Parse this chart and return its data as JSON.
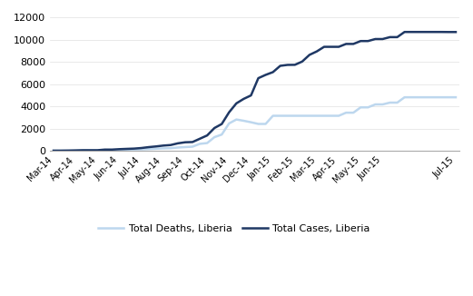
{
  "title": "",
  "cases": [
    [
      0,
      13
    ],
    [
      1,
      13
    ],
    [
      2,
      21
    ],
    [
      3,
      35
    ],
    [
      4,
      51
    ],
    [
      5,
      51
    ],
    [
      6,
      51
    ],
    [
      7,
      107
    ],
    [
      8,
      107
    ],
    [
      9,
      145
    ],
    [
      10,
      172
    ],
    [
      11,
      196
    ],
    [
      12,
      247
    ],
    [
      13,
      329
    ],
    [
      14,
      391
    ],
    [
      15,
      468
    ],
    [
      16,
      516
    ],
    [
      17,
      670
    ],
    [
      18,
      765
    ],
    [
      19,
      786
    ],
    [
      20,
      1082
    ],
    [
      21,
      1378
    ],
    [
      22,
      2046
    ],
    [
      23,
      2407
    ],
    [
      24,
      3457
    ],
    [
      25,
      4262
    ],
    [
      26,
      4665
    ],
    [
      27,
      4976
    ],
    [
      28,
      6525
    ],
    [
      29,
      6822
    ],
    [
      30,
      7069
    ],
    [
      31,
      7635
    ],
    [
      32,
      7719
    ],
    [
      33,
      7726
    ],
    [
      34,
      8018
    ],
    [
      35,
      8621
    ],
    [
      36,
      8931
    ],
    [
      37,
      9343
    ],
    [
      38,
      9343
    ],
    [
      39,
      9343
    ],
    [
      40,
      9602
    ],
    [
      41,
      9602
    ],
    [
      42,
      9862
    ],
    [
      43,
      9862
    ],
    [
      44,
      10042
    ],
    [
      45,
      10042
    ],
    [
      46,
      10214
    ],
    [
      47,
      10214
    ],
    [
      48,
      10678
    ],
    [
      49,
      10678
    ],
    [
      50,
      10678
    ],
    [
      51,
      10678
    ],
    [
      52,
      10678
    ],
    [
      53,
      10678
    ],
    [
      54,
      10672
    ],
    [
      55,
      10672
    ]
  ],
  "deaths": [
    [
      0,
      0
    ],
    [
      1,
      0
    ],
    [
      2,
      0
    ],
    [
      3,
      0
    ],
    [
      4,
      29
    ],
    [
      5,
      29
    ],
    [
      6,
      29
    ],
    [
      7,
      62
    ],
    [
      8,
      62
    ],
    [
      9,
      84
    ],
    [
      10,
      105
    ],
    [
      11,
      114
    ],
    [
      12,
      129
    ],
    [
      13,
      156
    ],
    [
      14,
      186
    ],
    [
      15,
      215
    ],
    [
      16,
      235
    ],
    [
      17,
      294
    ],
    [
      18,
      332
    ],
    [
      19,
      370
    ],
    [
      20,
      624
    ],
    [
      21,
      694
    ],
    [
      22,
      1224
    ],
    [
      23,
      1459
    ],
    [
      24,
      2458
    ],
    [
      25,
      2812
    ],
    [
      26,
      2697
    ],
    [
      27,
      2564
    ],
    [
      28,
      2413
    ],
    [
      29,
      2413
    ],
    [
      30,
      3145
    ],
    [
      31,
      3145
    ],
    [
      32,
      3145
    ],
    [
      33,
      3145
    ],
    [
      34,
      3145
    ],
    [
      35,
      3145
    ],
    [
      36,
      3145
    ],
    [
      37,
      3145
    ],
    [
      38,
      3145
    ],
    [
      39,
      3145
    ],
    [
      40,
      3423
    ],
    [
      41,
      3423
    ],
    [
      42,
      3902
    ],
    [
      43,
      3902
    ],
    [
      44,
      4167
    ],
    [
      45,
      4167
    ],
    [
      46,
      4328
    ],
    [
      47,
      4328
    ],
    [
      48,
      4808
    ],
    [
      49,
      4808
    ],
    [
      50,
      4808
    ],
    [
      51,
      4808
    ],
    [
      52,
      4808
    ],
    [
      53,
      4808
    ],
    [
      54,
      4809
    ],
    [
      55,
      4809
    ]
  ],
  "x_labels": [
    "Mar-14",
    "Apr-14",
    "May-14",
    "Jun-14",
    "Jul-14",
    "Aug-14",
    "Sep-14",
    "Oct-14",
    "Nov-14",
    "Dec-14",
    "Jan-15",
    "Feb-15",
    "Mar-15",
    "Apr-15",
    "May-15",
    "Jun-15",
    "Jul-15"
  ],
  "x_ticks": [
    0,
    3,
    6,
    9,
    12,
    15,
    18,
    21,
    24,
    27,
    30,
    33,
    36,
    39,
    42,
    45,
    55
  ],
  "ylim": [
    0,
    12000
  ],
  "yticks": [
    0,
    2000,
    4000,
    6000,
    8000,
    10000,
    12000
  ],
  "cases_color": "#1F3864",
  "deaths_color": "#BDD7EE",
  "cases_label": "Total Cases, Liberia",
  "deaths_label": "Total Deaths, Liberia",
  "line_width": 1.8,
  "background_color": "#FFFFFF",
  "grid_color": "#E0E0E0"
}
